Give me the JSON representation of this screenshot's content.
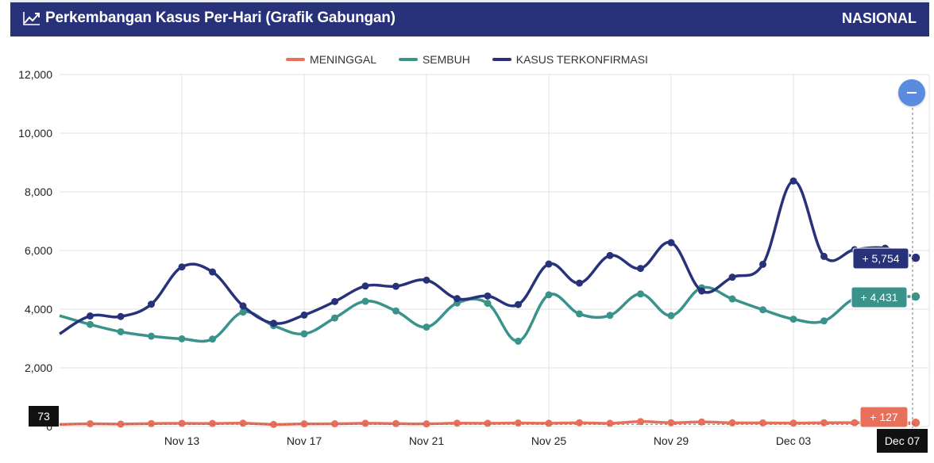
{
  "header": {
    "title": "Perkembangan Kasus Per-Hari (Grafik Gabungan)",
    "right_label": "NASIONAL",
    "title_icon": "line-chart-icon"
  },
  "tooltips": {
    "konfirmasi": "+ 5,754",
    "sembuh": "+ 4,431",
    "meninggal": "+ 127",
    "left_value": "73",
    "date": "Dec 07"
  },
  "chart_data": {
    "type": "line",
    "title": "Perkembangan Kasus Per-Hari (Grafik Gabungan)",
    "xlabel": "",
    "ylabel": "",
    "ylim": [
      0,
      12000
    ],
    "y_ticks": [
      "0",
      "2,000",
      "4,000",
      "6,000",
      "8,000",
      "10,000",
      "12,000"
    ],
    "x_ticks": [
      "Nov 13",
      "Nov 17",
      "Nov 21",
      "Nov 25",
      "Nov 29",
      "Dec 03"
    ],
    "x": [
      "Nov 09",
      "Nov 10",
      "Nov 11",
      "Nov 12",
      "Nov 13",
      "Nov 14",
      "Nov 15",
      "Nov 16",
      "Nov 17",
      "Nov 18",
      "Nov 19",
      "Nov 20",
      "Nov 21",
      "Nov 22",
      "Nov 23",
      "Nov 24",
      "Nov 25",
      "Nov 26",
      "Nov 27",
      "Nov 28",
      "Nov 29",
      "Nov 30",
      "Dec 01",
      "Dec 02",
      "Dec 03",
      "Dec 04",
      "Dec 05",
      "Dec 06",
      "Dec 07"
    ],
    "legend_position": "top-center",
    "grid": true,
    "series": [
      {
        "name": "MENINGGAL",
        "color": "#e8705a",
        "values": [
          73,
          95,
          84,
          101,
          109,
          104,
          114,
          72,
          90,
          94,
          110,
          100,
          91,
          115,
          110,
          120,
          110,
          130,
          110,
          169,
          130,
          156,
          128,
          125,
          118,
          130,
          133,
          127,
          127
        ]
      },
      {
        "name": "SEMBUH",
        "color": "#3a938b",
        "values": [
          3780,
          3480,
          3230,
          3080,
          2990,
          2980,
          3900,
          3440,
          3160,
          3700,
          4270,
          3940,
          3390,
          4210,
          4200,
          2910,
          4490,
          3840,
          3790,
          4520,
          3780,
          4730,
          4350,
          3980,
          3660,
          3600,
          4360,
          4431,
          4431
        ]
      },
      {
        "name": "KASUS TERKONFIRMASI",
        "color": "#27327a",
        "values": [
          3160,
          3770,
          3750,
          4170,
          5440,
          5270,
          4110,
          3520,
          3800,
          4260,
          4790,
          4780,
          4990,
          4360,
          4450,
          4160,
          5540,
          4890,
          5830,
          5390,
          6270,
          4620,
          5090,
          5530,
          8370,
          5800,
          6030,
          6080,
          5754
        ]
      }
    ]
  }
}
